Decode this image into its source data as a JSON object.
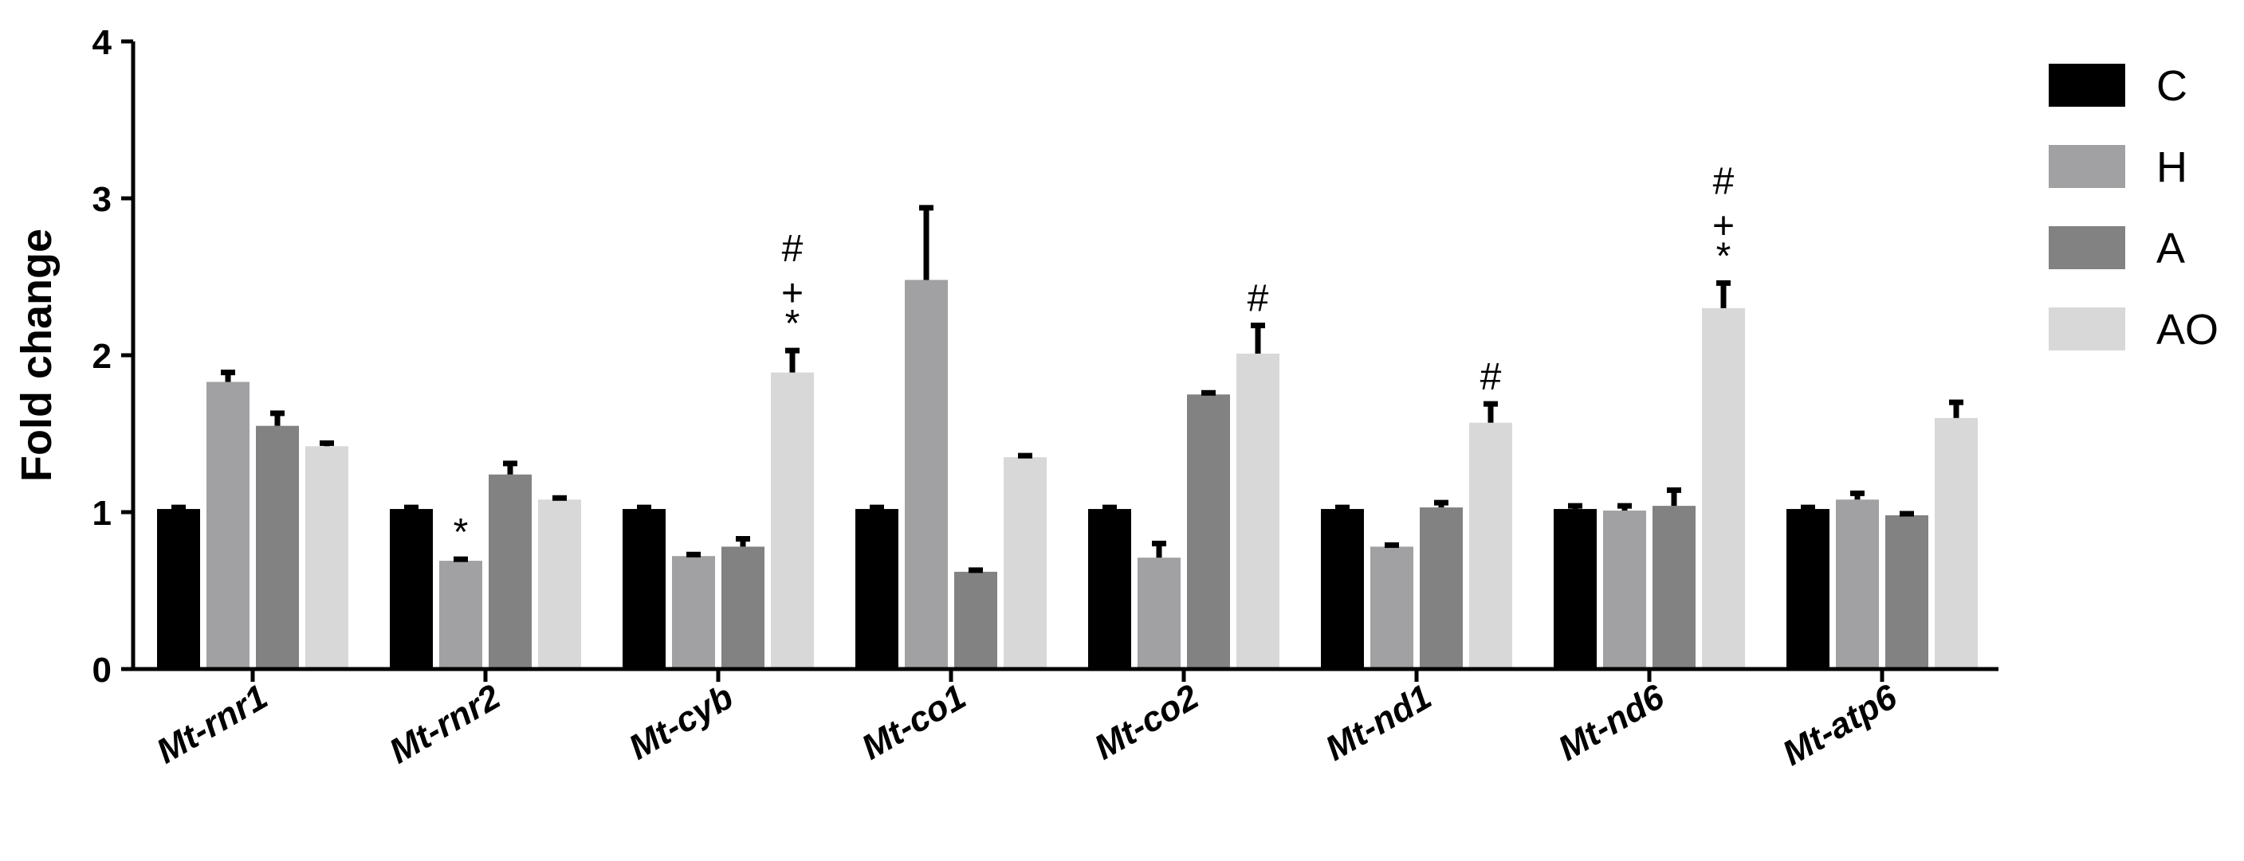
{
  "chart_data": {
    "type": "bar",
    "title": "",
    "xlabel": "",
    "ylabel": "Fold change",
    "ylim": [
      0,
      4
    ],
    "yticks": [
      "0",
      "1",
      "2",
      "3",
      "4"
    ],
    "categories": [
      "Mt-rnr1",
      "Mt-rnr2",
      "Mt-cyb",
      "Mt-co1",
      "Mt-co2",
      "Mt-nd1",
      "Mt-nd6",
      "Mt-atp6"
    ],
    "legend_position": "right",
    "series": [
      {
        "name": "C",
        "color": "#000000",
        "values": [
          1.02,
          1.02,
          1.02,
          1.02,
          1.02,
          1.02,
          1.02,
          1.02
        ],
        "errors": [
          0.01,
          0.01,
          0.01,
          0.01,
          0.01,
          0.01,
          0.02,
          0.01
        ]
      },
      {
        "name": "H",
        "color": "#a1a1a4",
        "values": [
          1.83,
          0.69,
          0.72,
          2.48,
          0.71,
          0.78,
          1.01,
          1.08
        ],
        "errors": [
          0.06,
          0.01,
          0.01,
          0.46,
          0.09,
          0.01,
          0.03,
          0.04
        ]
      },
      {
        "name": "A",
        "color": "#828282",
        "values": [
          1.55,
          1.24,
          0.78,
          0.62,
          1.75,
          1.03,
          1.04,
          0.98
        ],
        "errors": [
          0.08,
          0.07,
          0.05,
          0.01,
          0.01,
          0.03,
          0.1,
          0.01
        ]
      },
      {
        "name": "AO",
        "color": "#d8d8d8",
        "values": [
          1.42,
          1.08,
          1.89,
          1.35,
          2.01,
          1.57,
          2.3,
          1.6
        ],
        "errors": [
          0.02,
          0.01,
          0.14,
          0.01,
          0.18,
          0.12,
          0.16,
          0.1
        ]
      }
    ],
    "annotations": [
      {
        "category": "Mt-rnr2",
        "series": "H",
        "lines": [
          "*"
        ]
      },
      {
        "category": "Mt-cyb",
        "series": "AO",
        "lines": [
          "#",
          "+",
          "*"
        ]
      },
      {
        "category": "Mt-co2",
        "series": "AO",
        "lines": [
          "#"
        ]
      },
      {
        "category": "Mt-nd1",
        "series": "AO",
        "lines": [
          "#"
        ]
      },
      {
        "category": "Mt-nd6",
        "series": "AO",
        "lines": [
          "#",
          "+",
          "*"
        ]
      }
    ]
  }
}
